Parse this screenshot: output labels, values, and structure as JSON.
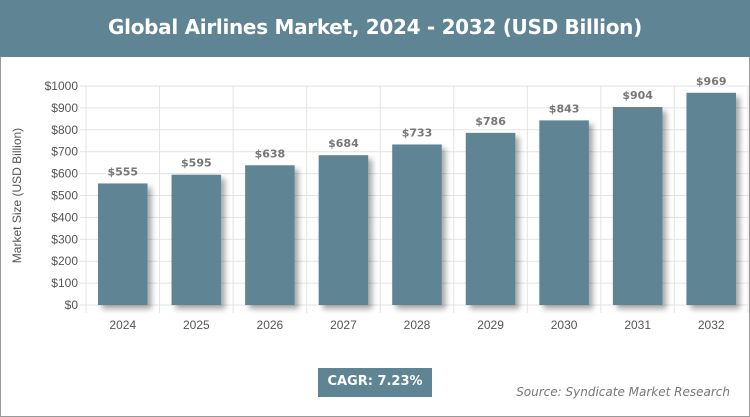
{
  "title": "Global Airlines Market, 2024 - 2032 (USD Billion)",
  "cagr": "CAGR: 7.23%",
  "source": "Source: Syndicate Market Research",
  "colors": {
    "bar": "#5f8494",
    "header": "#5f8494"
  },
  "chart_data": {
    "type": "bar",
    "title": "Global Airlines Market, 2024 - 2032 (USD Billion)",
    "xlabel": "",
    "ylabel": "Market Size (USD Billion)",
    "categories": [
      "2024",
      "2025",
      "2026",
      "2027",
      "2028",
      "2029",
      "2030",
      "2031",
      "2032"
    ],
    "values": [
      555,
      595,
      638,
      684,
      733,
      786,
      843,
      904,
      969
    ],
    "data_labels": [
      "$555",
      "$595",
      "$638",
      "$684",
      "$733",
      "$786",
      "$843",
      "$904",
      "$969"
    ],
    "ylim": [
      0,
      1000
    ],
    "yticks": [
      "$0",
      "$100",
      "$200",
      "$300",
      "$400",
      "$500",
      "$600",
      "$700",
      "$800",
      "$900",
      "$1000"
    ],
    "grid": true,
    "legend": "none"
  }
}
